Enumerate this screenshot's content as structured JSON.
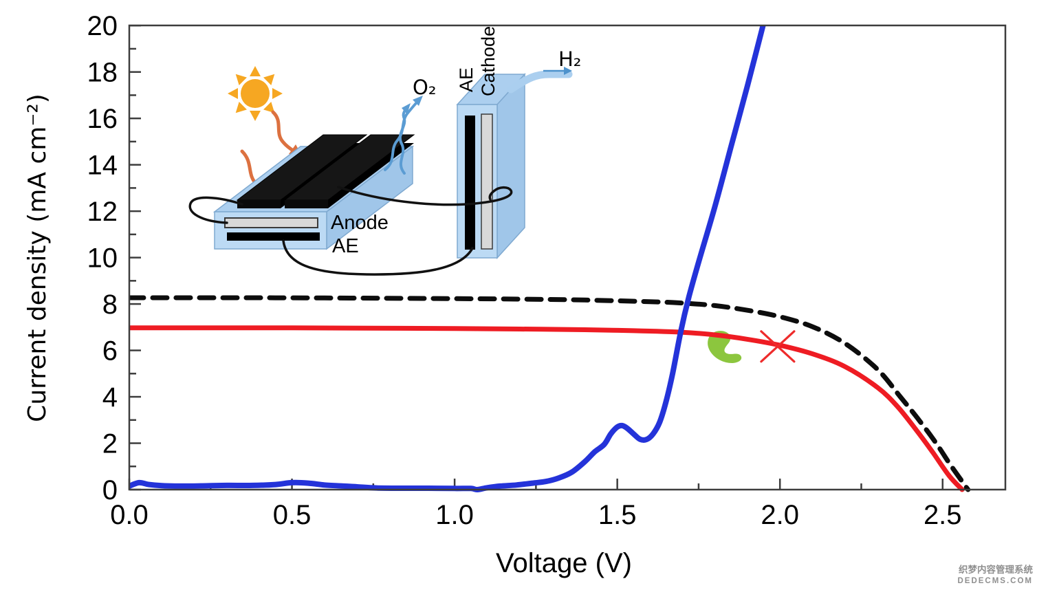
{
  "watermark": {
    "line1": "织梦内容管理系统",
    "line2": "DEDECMS.COM"
  },
  "inset": {
    "anode_label": "Anode",
    "anode_ae_label": "AE",
    "cathode_label": "Cathode",
    "cathode_ae_label": "AE",
    "o2_label": "O₂",
    "h2_label": "H₂"
  },
  "chart_data": {
    "type": "line",
    "title": "",
    "xlabel": "Voltage (V)",
    "ylabel": "Current density (mA cm⁻²)",
    "xlim": [
      0,
      2.69
    ],
    "ylim": [
      0,
      20
    ],
    "grid": false,
    "legend": "none",
    "x_ticks": [
      {
        "v": 0.0,
        "label": "0.0"
      },
      {
        "v": 0.5,
        "label": "0.5"
      },
      {
        "v": 1.0,
        "label": "1.0"
      },
      {
        "v": 1.5,
        "label": "1.5"
      },
      {
        "v": 2.0,
        "label": "2.0"
      },
      {
        "v": 2.5,
        "label": "2.5"
      }
    ],
    "x_minor_ticks": [
      0.25,
      0.75,
      1.25,
      1.75,
      2.25
    ],
    "y_ticks": [
      {
        "v": 0,
        "label": "0"
      },
      {
        "v": 2,
        "label": "2"
      },
      {
        "v": 4,
        "label": "4"
      },
      {
        "v": 6,
        "label": "6"
      },
      {
        "v": 8,
        "label": "8"
      },
      {
        "v": 10,
        "label": "10"
      },
      {
        "v": 12,
        "label": "12"
      },
      {
        "v": 14,
        "label": "14"
      },
      {
        "v": 16,
        "label": "16"
      },
      {
        "v": 18,
        "label": "18"
      },
      {
        "v": 20,
        "label": "20"
      }
    ],
    "y_minor_ticks": [
      1,
      3,
      5,
      7,
      9,
      11,
      13,
      15,
      17,
      19
    ],
    "series": [
      {
        "name": "pv_jv_dashed_dark",
        "color": "#0d0d0d",
        "style": "dashed",
        "width": 7,
        "x": [
          0.0,
          0.3,
          0.6,
          0.9,
          1.2,
          1.4,
          1.6,
          1.7,
          1.8,
          1.9,
          2.0,
          2.1,
          2.2,
          2.3,
          2.37,
          2.43,
          2.48,
          2.52,
          2.555,
          2.578
        ],
        "y": [
          8.27,
          8.27,
          8.26,
          8.24,
          8.21,
          8.17,
          8.1,
          8.04,
          7.93,
          7.73,
          7.45,
          7.02,
          6.3,
          5.18,
          4.0,
          2.95,
          2.0,
          1.15,
          0.45,
          0.0
        ]
      },
      {
        "name": "pv_jv_red_operating",
        "color": "#ee1c23",
        "style": "solid",
        "width": 7,
        "x": [
          0.0,
          0.25,
          0.5,
          0.75,
          1.0,
          1.2,
          1.4,
          1.55,
          1.7,
          1.8,
          1.9,
          2.0,
          2.1,
          2.2,
          2.3,
          2.36,
          2.42,
          2.47,
          2.52,
          2.56
        ],
        "y": [
          6.97,
          6.97,
          6.97,
          6.96,
          6.94,
          6.92,
          6.89,
          6.85,
          6.78,
          6.67,
          6.48,
          6.22,
          5.85,
          5.3,
          4.4,
          3.6,
          2.55,
          1.6,
          0.6,
          0.0
        ]
      },
      {
        "name": "electrolyser_blue",
        "color": "#2433d9",
        "style": "solid",
        "width": 8,
        "x": [
          0.0,
          0.03,
          0.06,
          0.1,
          0.16,
          0.22,
          0.3,
          0.38,
          0.45,
          0.5,
          0.55,
          0.6,
          0.65,
          0.7,
          0.76,
          0.84,
          0.92,
          1.0,
          1.05,
          1.07,
          1.1,
          1.14,
          1.19,
          1.24,
          1.28,
          1.32,
          1.36,
          1.4,
          1.43,
          1.46,
          1.48,
          1.5,
          1.515,
          1.53,
          1.55,
          1.57,
          1.59,
          1.61,
          1.63,
          1.65,
          1.67,
          1.695,
          1.72,
          1.75,
          1.8,
          1.85,
          1.9,
          1.957
        ],
        "y": [
          0.15,
          0.3,
          0.22,
          0.17,
          0.15,
          0.16,
          0.18,
          0.18,
          0.22,
          0.3,
          0.28,
          0.2,
          0.16,
          0.12,
          0.07,
          0.06,
          0.06,
          0.05,
          0.05,
          0.0,
          0.08,
          0.15,
          0.2,
          0.28,
          0.35,
          0.5,
          0.75,
          1.2,
          1.62,
          1.95,
          2.4,
          2.7,
          2.76,
          2.65,
          2.4,
          2.17,
          2.16,
          2.4,
          2.9,
          3.8,
          5.0,
          6.8,
          8.3,
          9.8,
          12.2,
          14.8,
          17.4,
          20.5
        ]
      }
    ],
    "annotations": {
      "red_x_marker": {
        "x": 1.993,
        "y": 6.17,
        "color": "#ee2b2b"
      },
      "green_blob": {
        "x": 1.83,
        "y": 6.08,
        "color": "#8cc63e"
      }
    }
  }
}
